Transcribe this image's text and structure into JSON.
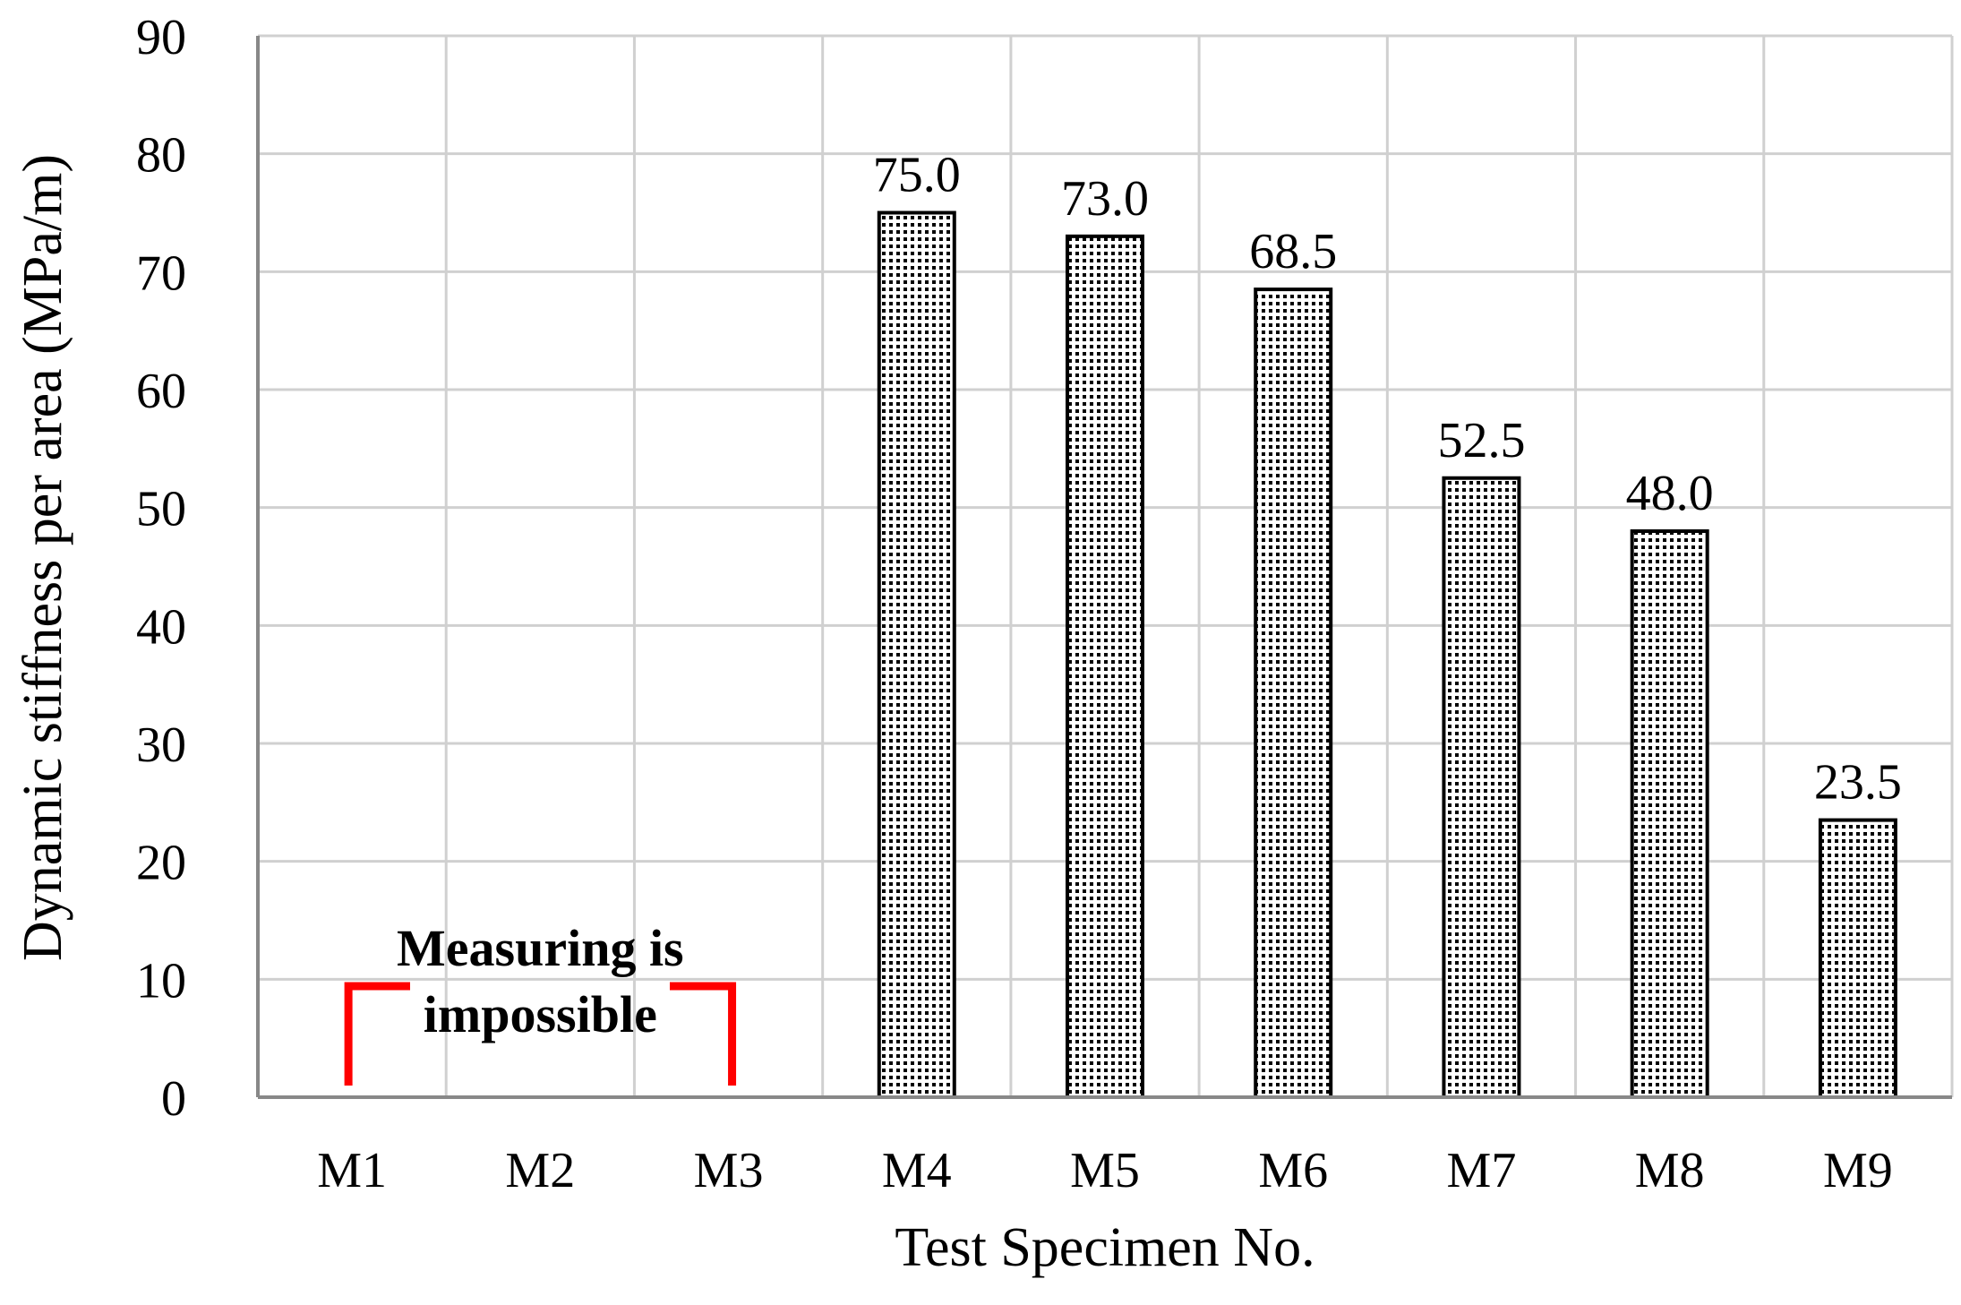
{
  "chart_data": {
    "type": "bar",
    "title": "",
    "xlabel": "Test Specimen No.",
    "ylabel": "Dynamic stiffness per area (MPa/m)",
    "ylim": [
      0,
      90
    ],
    "yticks": [
      0,
      10,
      20,
      30,
      40,
      50,
      60,
      70,
      80,
      90
    ],
    "grid": true,
    "legend": "none",
    "categories": [
      "M1",
      "M2",
      "M3",
      "M4",
      "M5",
      "M6",
      "M7",
      "M8",
      "M9"
    ],
    "values": [
      null,
      null,
      null,
      75.0,
      73.0,
      68.5,
      52.5,
      48.0,
      23.5
    ],
    "data_labels": [
      "",
      "",
      "",
      "75.0",
      "73.0",
      "68.5",
      "52.5",
      "48.0",
      "23.5"
    ],
    "bar_fill": "dotted pattern",
    "annotation": {
      "line1": "Measuring is",
      "line2": "impossible",
      "spans": [
        "M1",
        "M2",
        "M3"
      ],
      "bracket_color": "#ff0000"
    }
  }
}
